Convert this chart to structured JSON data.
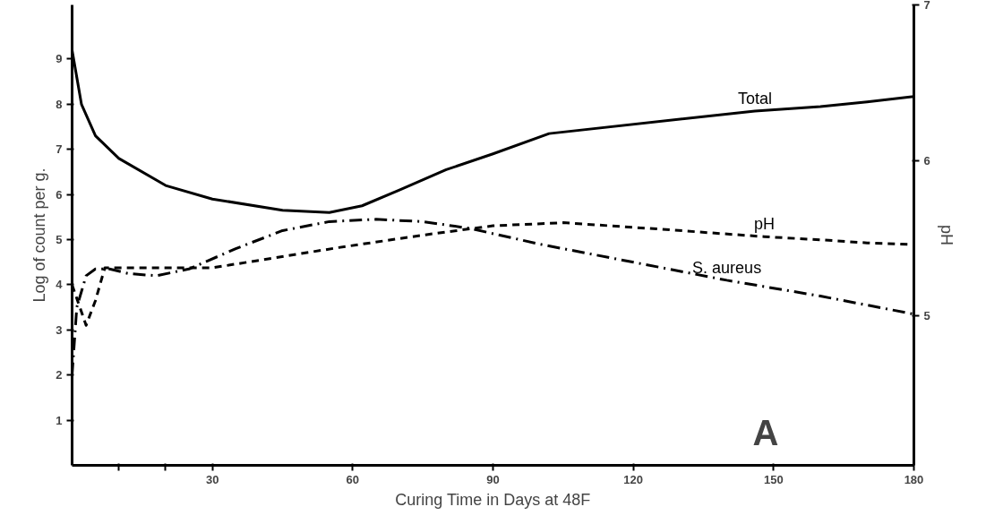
{
  "chart_data": {
    "type": "line",
    "xlabel": "Curing Time in Days at 48F",
    "ylabel": "Log of count per g.",
    "y2label": "pH",
    "xlim": [
      0,
      180
    ],
    "xticks": [
      {
        "value": 10,
        "label": null
      },
      {
        "value": 20,
        "label": null
      },
      30,
      60,
      90,
      120,
      150,
      180
    ],
    "ylim": [
      0,
      10.2
    ],
    "yticks": [
      1,
      2,
      3,
      4,
      5,
      6,
      7,
      8,
      9
    ],
    "y2lim": [
      4.04,
      7
    ],
    "y2ticks": [
      5,
      6,
      7
    ],
    "grid": false,
    "marker": "none",
    "annotations": [
      "A"
    ],
    "series": [
      {
        "name": "Total",
        "color": "#000000",
        "line_style": "solid",
        "x": [
          0,
          1,
          2,
          5,
          10,
          20,
          30,
          45,
          55,
          62,
          70,
          80,
          90,
          102,
          146,
          160,
          170,
          180
        ],
        "values": [
          9.2,
          8.6,
          8.0,
          7.3,
          6.8,
          6.2,
          5.9,
          5.65,
          5.6,
          5.75,
          6.1,
          6.55,
          6.9,
          7.35,
          7.85,
          7.95,
          8.05,
          8.17
        ]
      },
      {
        "name": "S. aureus",
        "color": "#000000",
        "line_style": "dashdot",
        "x": [
          0,
          1,
          3,
          5,
          8,
          12,
          18,
          25,
          35,
          45,
          55,
          65,
          75,
          85,
          100,
          140,
          160,
          170,
          180
        ],
        "values": [
          2.0,
          3.5,
          4.2,
          4.35,
          4.35,
          4.25,
          4.2,
          4.35,
          4.8,
          5.2,
          5.4,
          5.45,
          5.4,
          5.25,
          4.9,
          4.1,
          3.75,
          3.55,
          3.35
        ]
      },
      {
        "name": "pH",
        "color": "#000000",
        "line_style": "dashed",
        "axis": "y2",
        "x": [
          0,
          3,
          5,
          7,
          30,
          57,
          75,
          90,
          105,
          125,
          148,
          160,
          170,
          180
        ],
        "values": [
          5.2,
          4.94,
          5.1,
          5.31,
          5.31,
          5.44,
          5.52,
          5.58,
          5.6,
          5.56,
          5.51,
          5.49,
          5.47,
          5.46
        ]
      }
    ]
  }
}
